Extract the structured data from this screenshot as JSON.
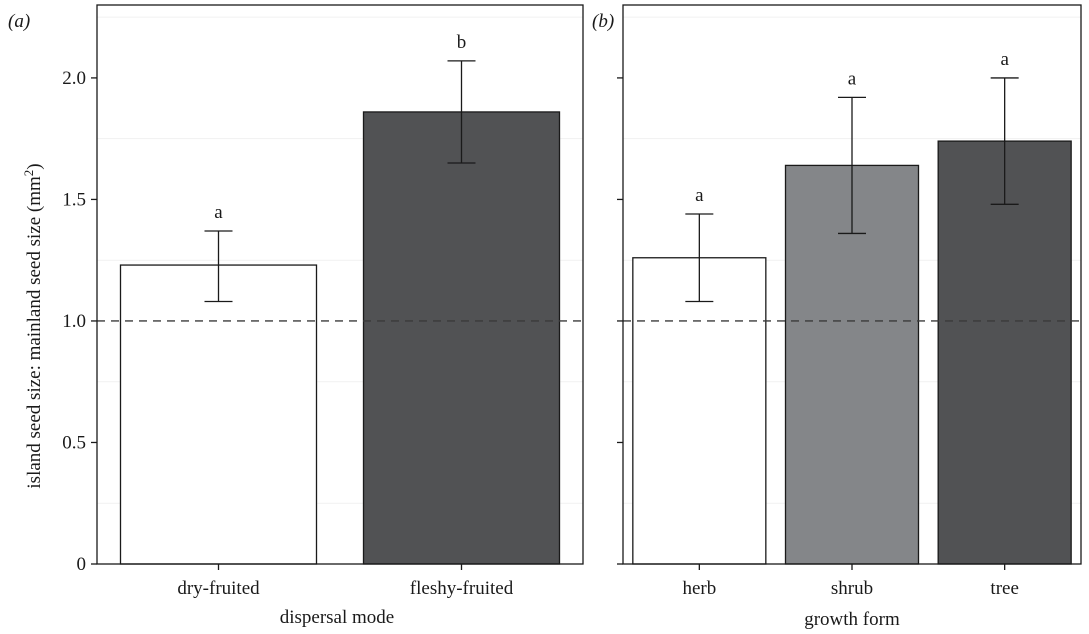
{
  "chart_data": [
    {
      "type": "bar",
      "panel_label": "(a)",
      "xlabel": "dispersal mode",
      "ylabel_main": "island seed size: mainland seed size (mm",
      "ylabel_sup": "2",
      "ylabel_end": ")",
      "ylim": [
        0,
        2.3
      ],
      "yticks": [
        0,
        0.5,
        1.0,
        1.5,
        2.0
      ],
      "ytick_labels": [
        "0",
        "0.5",
        "1.0",
        "1.5",
        "2.0"
      ],
      "reference_line": 1.0,
      "grid": true,
      "categories": [
        "dry-fruited",
        "fleshy-fruited"
      ],
      "values": [
        1.23,
        1.86
      ],
      "error_low": [
        1.08,
        1.65
      ],
      "error_high": [
        1.37,
        2.07
      ],
      "significance": [
        "a",
        "b"
      ],
      "bar_colors": [
        "#ffffff",
        "#515254"
      ]
    },
    {
      "type": "bar",
      "panel_label": "(b)",
      "xlabel": "growth form",
      "ylim": [
        0,
        2.3
      ],
      "yticks": [
        0,
        0.5,
        1.0,
        1.5,
        2.0
      ],
      "reference_line": 1.0,
      "grid": true,
      "categories": [
        "herb",
        "shrub",
        "tree"
      ],
      "values": [
        1.26,
        1.64,
        1.74
      ],
      "error_low": [
        1.08,
        1.36,
        1.48
      ],
      "error_high": [
        1.44,
        1.92,
        2.0
      ],
      "significance": [
        "a",
        "a",
        "a"
      ],
      "bar_colors": [
        "#ffffff",
        "#848689",
        "#515254"
      ]
    }
  ]
}
